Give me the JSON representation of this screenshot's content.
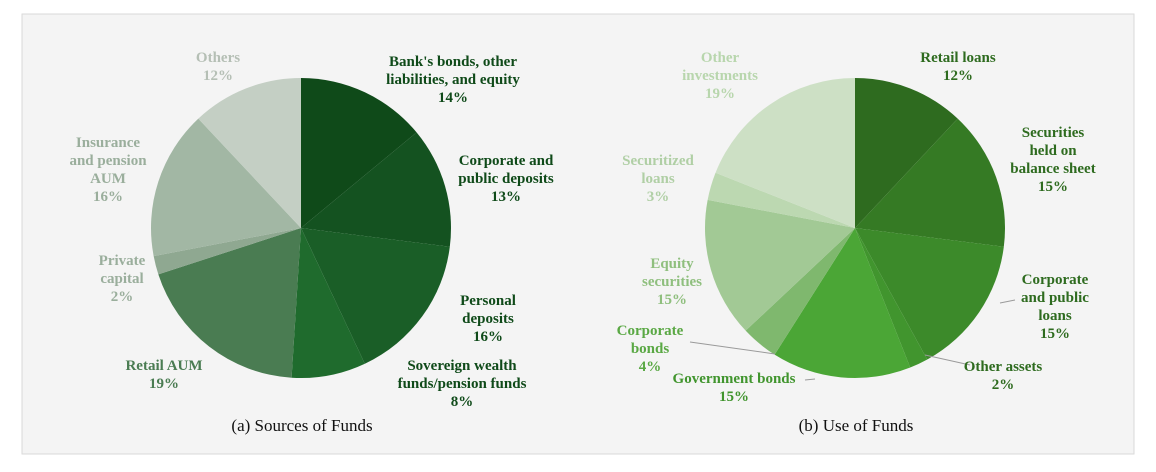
{
  "chart_data": [
    {
      "type": "pie",
      "caption": "(a) Sources of Funds",
      "slices": [
        {
          "lines": [
            "Bank's bonds, other",
            "liabilities, and equity"
          ],
          "pct_label": "14%",
          "value": 14,
          "color": "#0f4a19"
        },
        {
          "lines": [
            "Corporate and",
            "public deposits"
          ],
          "pct_label": "13%",
          "value": 13,
          "color": "#145220"
        },
        {
          "lines": [
            "Personal",
            "deposits"
          ],
          "pct_label": "16%",
          "value": 16,
          "color": "#1a5e27"
        },
        {
          "lines": [
            "Sovereign wealth",
            "funds/pension funds"
          ],
          "pct_label": "8%",
          "value": 8,
          "color": "#1f6b2d"
        },
        {
          "lines": [
            "Retail AUM"
          ],
          "pct_label": "19%",
          "value": 19,
          "color": "#4a7c52"
        },
        {
          "lines": [
            "Private",
            "capital"
          ],
          "pct_label": "2%",
          "value": 2,
          "color": "#8fa891"
        },
        {
          "lines": [
            "Insurance",
            "and pension",
            "AUM"
          ],
          "pct_label": "16%",
          "value": 16,
          "color": "#a2b7a4"
        },
        {
          "lines": [
            "Others"
          ],
          "pct_label": "12%",
          "value": 12,
          "color": "#c4cfc4"
        }
      ]
    },
    {
      "type": "pie",
      "caption": "(b) Use of Funds",
      "slices": [
        {
          "lines": [
            "Retail loans"
          ],
          "pct_label": "12%",
          "value": 12,
          "color": "#2e6b1f"
        },
        {
          "lines": [
            "Securities",
            "held on",
            "balance sheet"
          ],
          "pct_label": "15%",
          "value": 15,
          "color": "#357a24"
        },
        {
          "lines": [
            "Corporate",
            "and public",
            "loans"
          ],
          "pct_label": "15%",
          "value": 15,
          "color": "#3c8a2a"
        },
        {
          "lines": [
            "Other assets"
          ],
          "pct_label": "2%",
          "value": 2,
          "color": "#41952e"
        },
        {
          "lines": [
            "Government bonds"
          ],
          "pct_label": "15%",
          "value": 15,
          "color": "#4ba636"
        },
        {
          "lines": [
            "Corporate",
            "bonds"
          ],
          "pct_label": "4%",
          "value": 4,
          "color": "#7fb86e"
        },
        {
          "lines": [
            "Equity",
            "securities"
          ],
          "pct_label": "15%",
          "value": 15,
          "color": "#a2c995"
        },
        {
          "lines": [
            "Securitized",
            "loans"
          ],
          "pct_label": "3%",
          "value": 3,
          "color": "#bcd8b1"
        },
        {
          "lines": [
            "Other",
            "investments"
          ],
          "pct_label": "19%",
          "value": 19,
          "color": "#cde0c5"
        }
      ]
    }
  ]
}
